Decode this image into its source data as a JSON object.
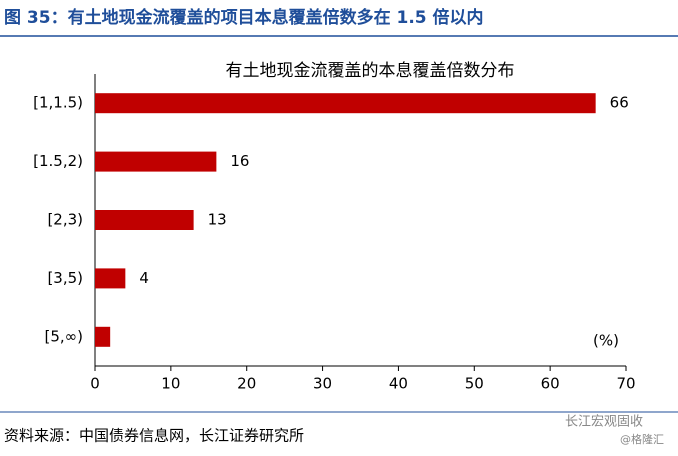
{
  "header": {
    "title": "图 35：有土地现金流覆盖的项目本息覆盖倍数多在 1.5 倍以内"
  },
  "chart_data": {
    "type": "bar",
    "orientation": "horizontal",
    "title": "有土地现金流覆盖的本息覆盖倍数分布",
    "categories": [
      "[1,1.5)",
      "[1.5,2)",
      "[2,3)",
      "[3,5)",
      "[5,∞)"
    ],
    "values": [
      66,
      16,
      13,
      4,
      2
    ],
    "value_labels": [
      "66",
      "16",
      "13",
      "4",
      null
    ],
    "color": "#c00000",
    "unit": "(%)",
    "xlim": [
      0,
      70
    ],
    "xticks": [
      0,
      10,
      20,
      30,
      40,
      50,
      60,
      70
    ]
  },
  "footer": {
    "source": "资料来源：中国债券信息网，长江证券研究所",
    "watermark": "长江宏观固收",
    "credit": "@格隆汇"
  }
}
